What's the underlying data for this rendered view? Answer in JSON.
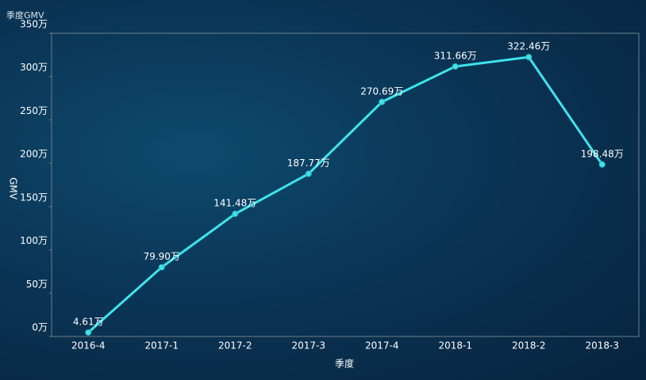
{
  "chart_data": {
    "type": "line",
    "title": "季度GMV",
    "x_label": "季度",
    "y_label": "GMV",
    "categories": [
      "2016-4",
      "2017-1",
      "2017-2",
      "2017-3",
      "2017-4",
      "2018-1",
      "2018-2",
      "2018-3"
    ],
    "series": [
      {
        "name": "GMV",
        "color": "#3ee3ec",
        "values": [
          4.61,
          79.9,
          141.48,
          187.77,
          270.69,
          311.66,
          322.46,
          198.48
        ],
        "value_labels": [
          "4.61万",
          "79.90万",
          "141.48万",
          "187.77万",
          "270.69万",
          "311.66万",
          "322.46万",
          "198.48万"
        ]
      }
    ],
    "ylim": [
      0,
      350
    ],
    "yticks": [
      {
        "value": 0,
        "label": "0万"
      },
      {
        "value": 50,
        "label": "50万"
      },
      {
        "value": 100,
        "label": "100万"
      },
      {
        "value": 150,
        "label": "150万"
      },
      {
        "value": 200,
        "label": "200万"
      },
      {
        "value": 250,
        "label": "250万"
      },
      {
        "value": 300,
        "label": "300万"
      },
      {
        "value": 350,
        "label": "350万"
      }
    ]
  }
}
